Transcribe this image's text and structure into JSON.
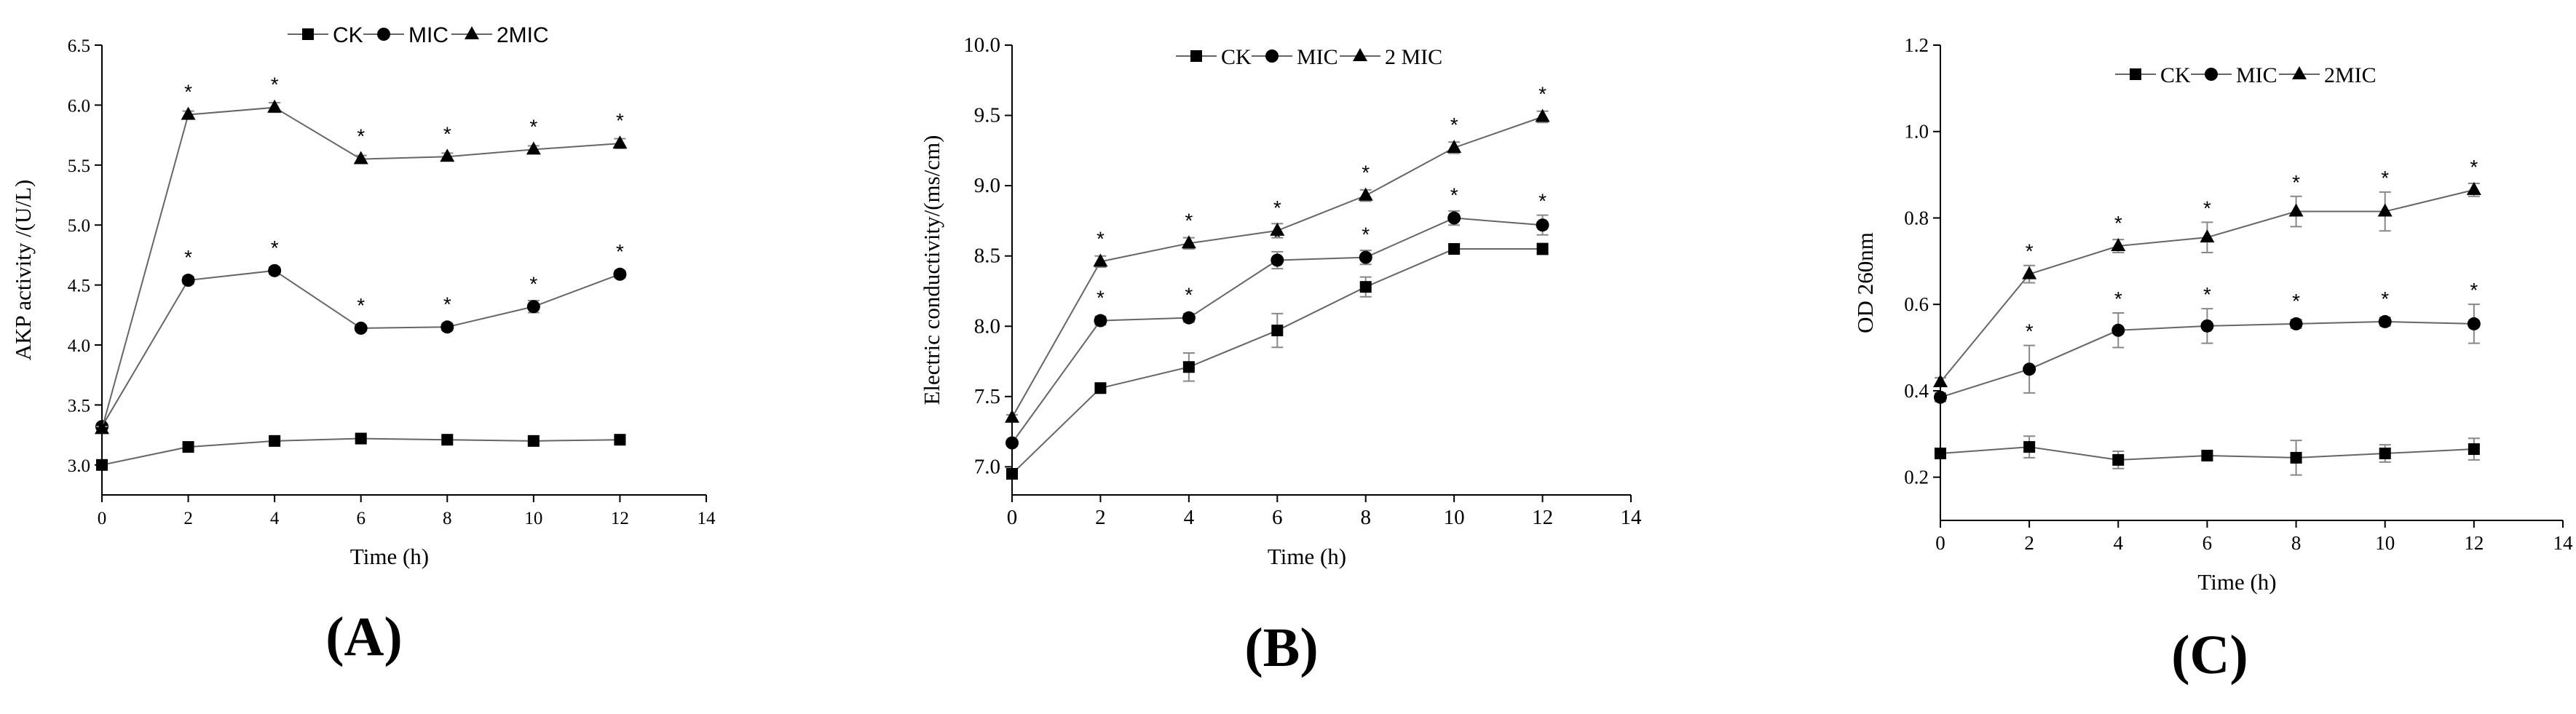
{
  "figure": {
    "colors": {
      "ink": "#000000",
      "line": "#666666",
      "error": "#888888"
    }
  },
  "chart_data": [
    {
      "type": "line",
      "panel_label": "(A)",
      "ylabel": "AKP activity /(U/L)",
      "xlabel": "Time (h)",
      "xlim": [
        0,
        14
      ],
      "ylim": [
        2.75,
        6.5
      ],
      "xticks": [
        0,
        2,
        4,
        6,
        8,
        10,
        12,
        14
      ],
      "xtick_labels": [
        "0",
        "2",
        "4",
        "6",
        "8",
        "10",
        "12",
        "14"
      ],
      "yticks": [
        3.0,
        3.5,
        4.0,
        4.5,
        5.0,
        5.5,
        6.0,
        6.5
      ],
      "ytick_labels": [
        "3.0",
        "3.5",
        "4.0",
        "4.5",
        "5.0",
        "5.5",
        "6.0",
        "6.5"
      ],
      "legend": {
        "placement": "top-center",
        "style": "sans"
      },
      "series": [
        {
          "name": "CK",
          "marker": "square",
          "x": [
            0,
            2,
            4,
            6,
            8,
            10,
            12
          ],
          "values": [
            3.0,
            3.15,
            3.2,
            3.22,
            3.21,
            3.2,
            3.21
          ],
          "errors": [
            0.02,
            0.02,
            0.02,
            0.02,
            0.02,
            0.02,
            0.02
          ],
          "stars": [
            false,
            false,
            false,
            false,
            false,
            false,
            false
          ]
        },
        {
          "name": "MIC",
          "marker": "circle",
          "x": [
            0,
            2,
            4,
            6,
            8,
            10,
            12
          ],
          "values": [
            3.32,
            4.54,
            4.62,
            4.14,
            4.15,
            4.32,
            4.59
          ],
          "errors": [
            0.02,
            0.03,
            0.03,
            0.02,
            0.03,
            0.05,
            0.03
          ],
          "stars": [
            false,
            true,
            true,
            true,
            true,
            true,
            true
          ]
        },
        {
          "name": "2MIC",
          "marker": "triangle",
          "x": [
            0,
            2,
            4,
            6,
            8,
            10,
            12
          ],
          "values": [
            3.3,
            5.92,
            5.98,
            5.55,
            5.57,
            5.63,
            5.68
          ],
          "errors": [
            0.02,
            0.03,
            0.04,
            0.03,
            0.03,
            0.03,
            0.04
          ],
          "stars": [
            false,
            true,
            true,
            true,
            true,
            true,
            true
          ]
        }
      ]
    },
    {
      "type": "line",
      "panel_label": "(B)",
      "ylabel": "Electric conductivity/(ms/cm)",
      "xlabel": "Time (h)",
      "xlim": [
        0,
        14
      ],
      "ylim": [
        6.8,
        10.0
      ],
      "xticks": [
        0,
        2,
        4,
        6,
        8,
        10,
        12,
        14
      ],
      "xtick_labels": [
        "0",
        "2",
        "4",
        "6",
        "8",
        "10",
        "12",
        "14"
      ],
      "yticks": [
        7.0,
        7.5,
        8.0,
        8.5,
        9.0,
        9.5,
        10.0
      ],
      "ytick_labels": [
        "7.0",
        "7.5",
        "8.0",
        "8.5",
        "9.0",
        "9.5",
        "10.0"
      ],
      "legend": {
        "placement": "top-center",
        "style": "serif"
      },
      "series": [
        {
          "name": "CK",
          "marker": "square",
          "x": [
            0,
            2,
            4,
            6,
            8,
            10,
            12
          ],
          "values": [
            6.95,
            7.56,
            7.71,
            7.97,
            8.28,
            8.55,
            8.55
          ],
          "errors": [
            0.02,
            0.03,
            0.1,
            0.12,
            0.07,
            0.03,
            0.04
          ],
          "stars": [
            false,
            false,
            false,
            false,
            false,
            false,
            false
          ]
        },
        {
          "name": "MIC",
          "marker": "circle",
          "x": [
            0,
            2,
            4,
            6,
            8,
            10,
            12
          ],
          "values": [
            7.17,
            8.04,
            8.06,
            8.47,
            8.49,
            8.77,
            8.72
          ],
          "errors": [
            0.02,
            0.03,
            0.03,
            0.06,
            0.05,
            0.05,
            0.07
          ],
          "stars": [
            false,
            true,
            true,
            true,
            true,
            true,
            true
          ]
        },
        {
          "name": "2 MIC",
          "marker": "triangle",
          "x": [
            0,
            2,
            4,
            6,
            8,
            10,
            12
          ],
          "values": [
            7.35,
            8.46,
            8.59,
            8.68,
            8.93,
            9.27,
            9.49
          ],
          "errors": [
            0.02,
            0.04,
            0.04,
            0.05,
            0.04,
            0.04,
            0.04
          ],
          "stars": [
            false,
            true,
            true,
            true,
            true,
            true,
            true
          ]
        }
      ]
    },
    {
      "type": "line",
      "panel_label": "(C)",
      "ylabel": "OD 260nm",
      "xlabel": "Time (h)",
      "xlim": [
        0,
        14
      ],
      "ylim": [
        0.1,
        1.2
      ],
      "xticks": [
        0,
        2,
        4,
        6,
        8,
        10,
        12,
        14
      ],
      "xtick_labels": [
        "0",
        "2",
        "4",
        "6",
        "8",
        "10",
        "12",
        "14"
      ],
      "yticks": [
        0.2,
        0.4,
        0.6,
        0.8,
        1.0,
        1.2
      ],
      "ytick_labels": [
        "0.2",
        "0.4",
        "0.6",
        "0.8",
        "1.0",
        "1.2"
      ],
      "legend": {
        "placement": "top-center",
        "style": "serif"
      },
      "series": [
        {
          "name": "CK",
          "marker": "square",
          "x": [
            0,
            2,
            4,
            6,
            8,
            10,
            12
          ],
          "values": [
            0.255,
            0.27,
            0.24,
            0.25,
            0.245,
            0.255,
            0.265
          ],
          "errors": [
            0.01,
            0.025,
            0.02,
            0.01,
            0.04,
            0.02,
            0.025
          ],
          "stars": [
            false,
            false,
            false,
            false,
            false,
            false,
            false
          ]
        },
        {
          "name": "MIC",
          "marker": "circle",
          "x": [
            0,
            2,
            4,
            6,
            8,
            10,
            12
          ],
          "values": [
            0.385,
            0.45,
            0.54,
            0.55,
            0.555,
            0.56,
            0.555
          ],
          "errors": [
            0.01,
            0.055,
            0.04,
            0.04,
            0.01,
            0.01,
            0.045
          ],
          "stars": [
            false,
            true,
            true,
            true,
            true,
            true,
            true
          ]
        },
        {
          "name": "2MIC",
          "marker": "triangle",
          "x": [
            0,
            2,
            4,
            6,
            8,
            10,
            12
          ],
          "values": [
            0.42,
            0.67,
            0.735,
            0.755,
            0.815,
            0.815,
            0.865
          ],
          "errors": [
            0.01,
            0.02,
            0.015,
            0.035,
            0.035,
            0.045,
            0.015
          ],
          "stars": [
            false,
            true,
            true,
            true,
            true,
            true,
            true
          ]
        }
      ]
    }
  ]
}
